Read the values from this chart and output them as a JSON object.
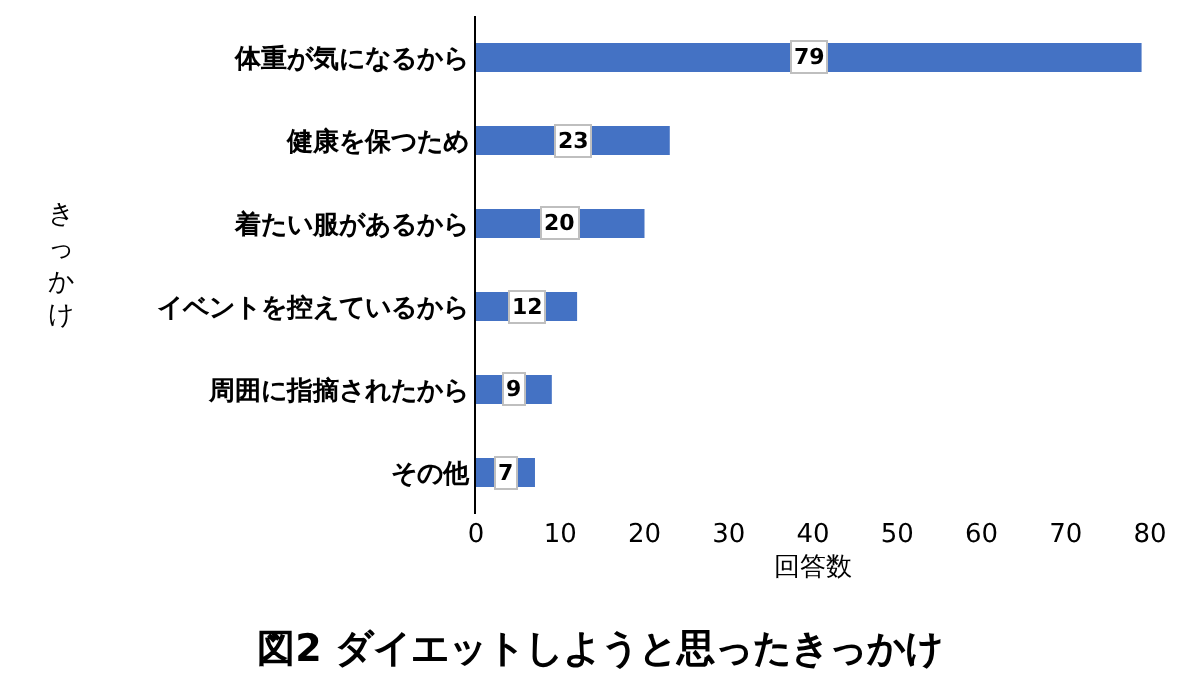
{
  "chart_data": {
    "type": "bar",
    "orientation": "horizontal",
    "title": "図2 ダイエットしようと思ったきっかけ",
    "xlabel": "回答数",
    "ylabel": "きっかけ",
    "categories": [
      "体重が気になるから",
      "健康を保つため",
      "着たい服があるから",
      "イベントを控えているから",
      "周囲に指摘されたから",
      "その他"
    ],
    "values": [
      79,
      23,
      20,
      12,
      9,
      7
    ],
    "color": "#4472c4",
    "xlim": [
      0,
      80
    ],
    "xticks": [
      0,
      10,
      20,
      30,
      40,
      50,
      60,
      70,
      80
    ],
    "grid": false,
    "data_labels": true
  }
}
